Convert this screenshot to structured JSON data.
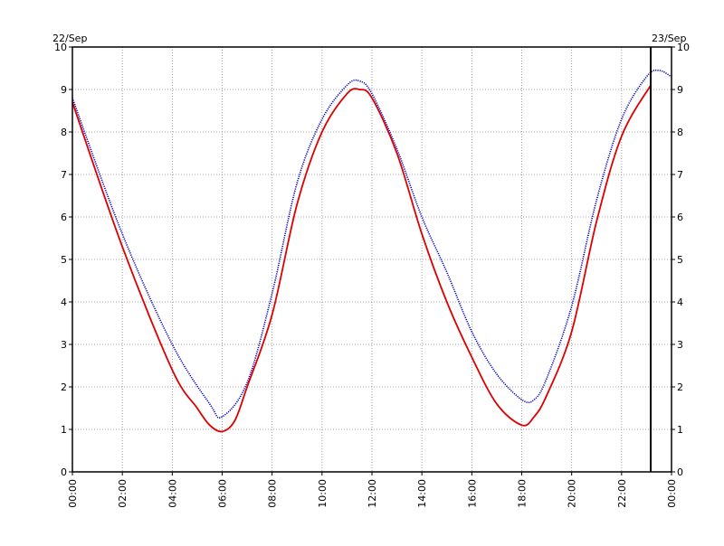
{
  "chart_data": {
    "type": "line",
    "title": "",
    "xlabel": "",
    "ylabel": "",
    "date_start_label": "22/Sep",
    "date_end_label": "23/Sep",
    "xlim": [
      "00:00",
      "24:00"
    ],
    "ylim": [
      0,
      10
    ],
    "grid": true,
    "grid_style": "dotted",
    "y_ticks": [
      0,
      1,
      2,
      3,
      4,
      5,
      6,
      7,
      8,
      9,
      10
    ],
    "x_ticks": [
      "00:00",
      "02:00",
      "04:00",
      "06:00",
      "08:00",
      "10:00",
      "12:00",
      "14:00",
      "16:00",
      "18:00",
      "20:00",
      "22:00",
      "00:00"
    ],
    "marker_line": {
      "x": "23:10",
      "color": "#000000"
    },
    "series": [
      {
        "color": "#0000cc",
        "style": "dotted",
        "x": [
          "00:00",
          "02:00",
          "04:00",
          "05:30",
          "06:00",
          "07:00",
          "08:00",
          "09:00",
          "10:00",
          "11:00",
          "11:30",
          "12:00",
          "13:00",
          "14:00",
          "15:00",
          "16:00",
          "17:00",
          "18:00",
          "18:30",
          "19:00",
          "20:00",
          "21:00",
          "22:00",
          "23:00",
          "23:30",
          "24:00"
        ],
        "values": [
          8.8,
          5.6,
          3.0,
          1.6,
          1.3,
          2.1,
          4.2,
          6.8,
          8.3,
          9.1,
          9.2,
          8.9,
          7.6,
          6.0,
          4.7,
          3.3,
          2.3,
          1.7,
          1.7,
          2.2,
          3.9,
          6.4,
          8.3,
          9.3,
          9.45,
          9.3
        ]
      },
      {
        "color": "#dd0000",
        "style": "solid",
        "x": [
          "00:00",
          "02:00",
          "04:00",
          "05:00",
          "05:30",
          "06:00",
          "06:30",
          "07:00",
          "08:00",
          "09:00",
          "10:00",
          "11:00",
          "11:30",
          "12:00",
          "13:00",
          "14:00",
          "15:00",
          "16:00",
          "17:00",
          "18:00",
          "18:30",
          "19:00",
          "20:00",
          "21:00",
          "22:00",
          "23:10"
        ],
        "values": [
          8.7,
          5.3,
          2.4,
          1.5,
          1.1,
          0.95,
          1.2,
          2.0,
          3.7,
          6.3,
          8.0,
          8.9,
          9.0,
          8.8,
          7.5,
          5.6,
          4.0,
          2.7,
          1.6,
          1.1,
          1.3,
          1.8,
          3.3,
          5.9,
          7.9,
          9.1
        ]
      }
    ]
  }
}
